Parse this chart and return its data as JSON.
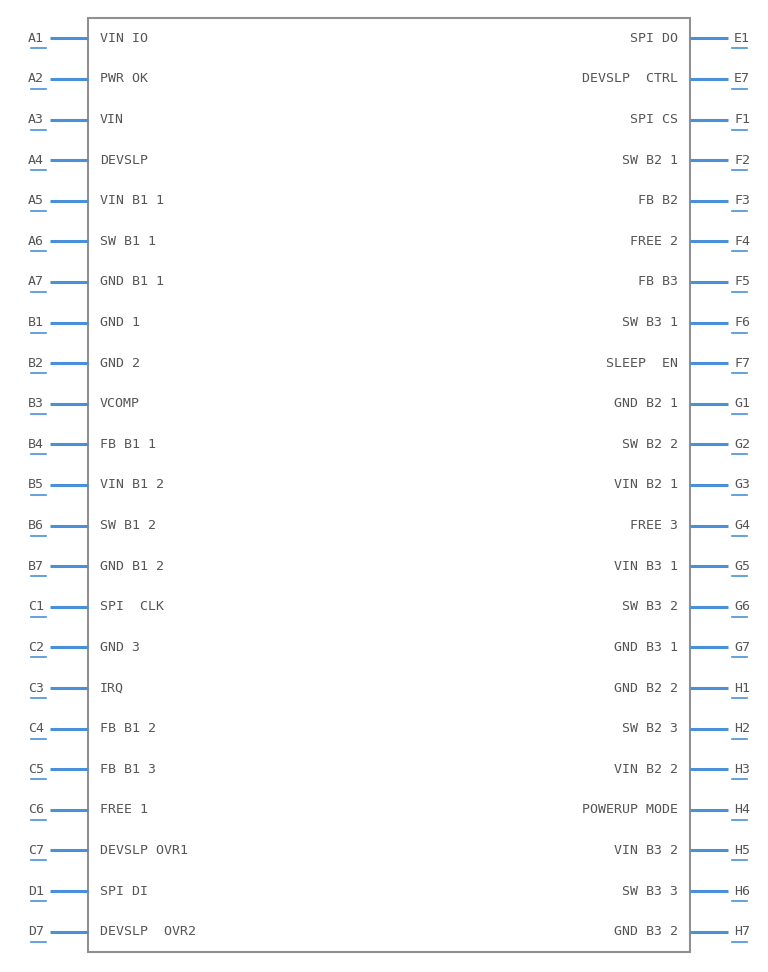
{
  "bg_color": "#ffffff",
  "border_color": "#909090",
  "pin_color": "#4a90d9",
  "text_color": "#555555",
  "left_pins": [
    {
      "name": "A1",
      "signal": "VIN_IO",
      "overline": false
    },
    {
      "name": "A2",
      "signal": "PWR_OK",
      "overline": true
    },
    {
      "name": "A3",
      "signal": "VIN",
      "overline": true
    },
    {
      "name": "A4",
      "signal": "DEVSLP",
      "overline": false
    },
    {
      "name": "A5",
      "signal": "VIN_B1_1",
      "overline": false
    },
    {
      "name": "A6",
      "signal": "SW_B1_1",
      "overline": true
    },
    {
      "name": "A7",
      "signal": "GND_B1_1",
      "overline": true
    },
    {
      "name": "B1",
      "signal": "GND_1",
      "overline": false
    },
    {
      "name": "B2",
      "signal": "GND_2",
      "overline": false
    },
    {
      "name": "B3",
      "signal": "VCOMP",
      "overline": true
    },
    {
      "name": "B4",
      "signal": "FB_B1_1",
      "overline": false
    },
    {
      "name": "B5",
      "signal": "VIN_B1_2",
      "overline": true
    },
    {
      "name": "B6",
      "signal": "SW_B1_2",
      "overline": true
    },
    {
      "name": "B7",
      "signal": "GND_B1_2",
      "overline": true
    },
    {
      "name": "C1",
      "signal": "SPI__CLK",
      "overline": true
    },
    {
      "name": "C2",
      "signal": "GND_3",
      "overline": false
    },
    {
      "name": "C3",
      "signal": "IRQ",
      "overline": true
    },
    {
      "name": "C4",
      "signal": "FB_B1_2",
      "overline": true
    },
    {
      "name": "C5",
      "signal": "FB_B1_3",
      "overline": true
    },
    {
      "name": "C6",
      "signal": "FREE_1",
      "overline": true
    },
    {
      "name": "C7",
      "signal": "DEVSLP_OVR1",
      "overline": true
    },
    {
      "name": "D1",
      "signal": "SPI_DI",
      "overline": true
    },
    {
      "name": "D7",
      "signal": "DEVSLP__OVR2",
      "overline": true
    }
  ],
  "right_pins": [
    {
      "name": "E1",
      "signal": "SPI_DO",
      "overline": false
    },
    {
      "name": "E7",
      "signal": "DEVSLP__CTRL",
      "overline": true
    },
    {
      "name": "F1",
      "signal": "SPI_CS",
      "overline": true
    },
    {
      "name": "F2",
      "signal": "SW_B2_1",
      "overline": true
    },
    {
      "name": "F3",
      "signal": "FB_B2",
      "overline": true
    },
    {
      "name": "F4",
      "signal": "FREE_2",
      "overline": true
    },
    {
      "name": "F5",
      "signal": "FB_B3",
      "overline": false
    },
    {
      "name": "F6",
      "signal": "SW_B3_1",
      "overline": true
    },
    {
      "name": "F7",
      "signal": "SLEEP__EN",
      "overline": true
    },
    {
      "name": "G1",
      "signal": "GND_B2_1",
      "overline": true
    },
    {
      "name": "G2",
      "signal": "SW_B2_2",
      "overline": true
    },
    {
      "name": "G3",
      "signal": "VIN_B2_1",
      "overline": true
    },
    {
      "name": "G4",
      "signal": "FREE_3",
      "overline": true
    },
    {
      "name": "G5",
      "signal": "VIN_B3_1",
      "overline": true
    },
    {
      "name": "G6",
      "signal": "SW_B3_2",
      "overline": true
    },
    {
      "name": "G7",
      "signal": "GND_B3_1",
      "overline": true
    },
    {
      "name": "H1",
      "signal": "GND_B2_2",
      "overline": true
    },
    {
      "name": "H2",
      "signal": "SW_B2_3",
      "overline": true
    },
    {
      "name": "H3",
      "signal": "VIN_B2_2",
      "overline": true
    },
    {
      "name": "H4",
      "signal": "POWERUP_MODE",
      "overline": true
    },
    {
      "name": "H5",
      "signal": "VIN_B3_2",
      "overline": true
    },
    {
      "name": "H6",
      "signal": "SW_B3_3",
      "overline": true
    },
    {
      "name": "H7",
      "signal": "GND_B3_2",
      "overline": true
    }
  ],
  "fig_width": 7.68,
  "fig_height": 9.72,
  "dpi": 100
}
